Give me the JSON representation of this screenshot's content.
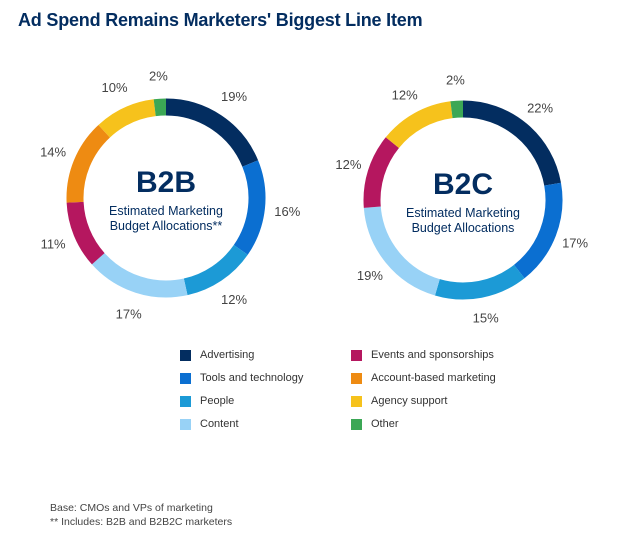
{
  "title": "Ad Spend Remains Marketers' Biggest Line Item",
  "colors": {
    "Advertising": "#032d60",
    "Tools and technology": "#0b6fd1",
    "People": "#1c9ad6",
    "Content": "#98d2f6",
    "Events and sponsorships": "#b5175f",
    "Account-based marketing": "#ee8b12",
    "Agency support": "#f6c21c",
    "Other": "#3ba755"
  },
  "chart_data": [
    {
      "type": "pie",
      "center_label": "B2B",
      "subtitle_line1": "Estimated Marketing",
      "subtitle_line2": "Budget Allocations**",
      "categories": [
        "Advertising",
        "Tools and technology",
        "People",
        "Content",
        "Events and sponsorships",
        "Account-based marketing",
        "Agency support",
        "Other"
      ],
      "values": [
        19,
        16,
        12,
        17,
        11,
        14,
        10,
        2
      ],
      "labels": [
        "19%",
        "16%",
        "12%",
        "17%",
        "11%",
        "14%",
        "10%",
        "2%"
      ]
    },
    {
      "type": "pie",
      "center_label": "B2C",
      "subtitle_line1": "Estimated Marketing",
      "subtitle_line2": "Budget Allocations",
      "categories": [
        "Advertising",
        "Tools and technology",
        "People",
        "Content",
        "Events and sponsorships",
        "Agency support",
        "Other"
      ],
      "values": [
        22,
        17,
        15,
        19,
        12,
        12,
        2
      ],
      "labels": [
        "22%",
        "17%",
        "15%",
        "19%",
        "12%",
        "12%",
        "2%"
      ]
    }
  ],
  "legend": {
    "left": [
      "Advertising",
      "Tools and technology",
      "People",
      "Content"
    ],
    "right": [
      "Events and sponsorships",
      "Account-based marketing",
      "Agency support",
      "Other"
    ]
  },
  "footnotes": {
    "base": "Base: CMOs and VPs of marketing",
    "includes": "** Includes: B2B and B2B2C marketers"
  }
}
